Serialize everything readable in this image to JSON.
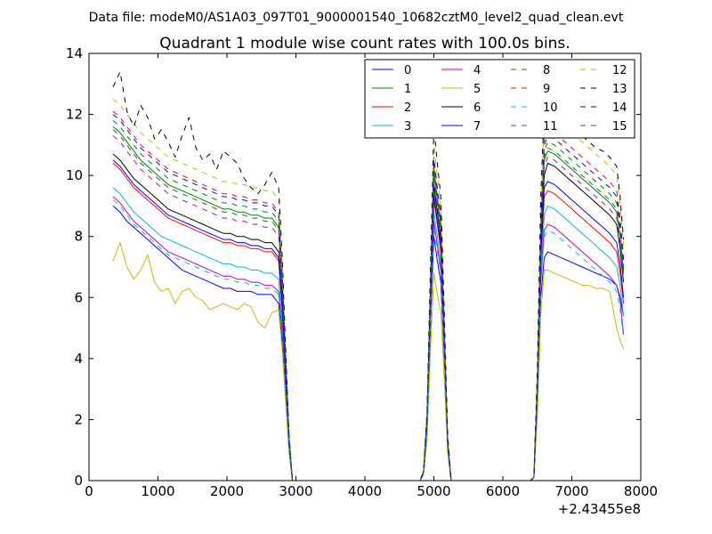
{
  "figure": {
    "suptitle": "Data file: modeM0/AS1A03_097T01_9000001540_10682cztM0_level2_quad_clean.evt"
  },
  "colors": {
    "palette": [
      "#0000ff",
      "#008000",
      "#ff0000",
      "#00bfbf",
      "#bf00bf",
      "#bfbf00",
      "#000000"
    ]
  },
  "chart_data": {
    "type": "line",
    "title": "Quadrant 1 module wise count rates with 100.0s bins.",
    "xlabel": "",
    "ylabel": "",
    "xlim": [
      0,
      8000
    ],
    "ylim": [
      0,
      14
    ],
    "x_offset_label": "+2.43455e8",
    "xticks": [
      0,
      1000,
      2000,
      3000,
      4000,
      5000,
      6000,
      7000,
      8000
    ],
    "xtick_labels": [
      "0",
      "1000",
      "2000",
      "3000",
      "4000",
      "5000",
      "6000",
      "7000",
      "8000"
    ],
    "yticks": [
      0,
      2,
      4,
      6,
      8,
      10,
      12,
      14
    ],
    "ytick_labels": [
      "0",
      "2",
      "4",
      "6",
      "8",
      "10",
      "12",
      "14"
    ],
    "grid": false,
    "legend": {
      "position": "top-right",
      "columns": 4
    },
    "x": [
      350,
      450,
      550,
      650,
      750,
      850,
      950,
      1050,
      1150,
      1250,
      1350,
      1450,
      1550,
      1650,
      1750,
      1850,
      1950,
      2050,
      2150,
      2250,
      2350,
      2450,
      2550,
      2650,
      2750,
      2800,
      2850,
      2900,
      2950,
      3050,
      3250,
      3500,
      4000,
      4500,
      4800,
      4850,
      4900,
      4950,
      5000,
      5050,
      5100,
      5150,
      5200,
      5250,
      5300,
      5500,
      6000,
      6400,
      6450,
      6500,
      6550,
      6600,
      6650,
      6750,
      6850,
      6950,
      7050,
      7150,
      7250,
      7350,
      7450,
      7550,
      7650,
      7700,
      7750
    ],
    "series": [
      {
        "name": "0",
        "style": "solid",
        "color": "#0000ff",
        "values": [
          9.0,
          8.8,
          8.5,
          8.3,
          8.1,
          7.9,
          7.7,
          7.5,
          7.3,
          7.1,
          6.9,
          6.8,
          6.7,
          6.6,
          6.5,
          6.4,
          6.3,
          6.3,
          6.2,
          6.2,
          6.2,
          6.1,
          6.1,
          6.1,
          5.8,
          4.5,
          2.8,
          1.0,
          0,
          0,
          0,
          0,
          0,
          0,
          0,
          0.2,
          1.5,
          5.0,
          8.0,
          7.2,
          6.5,
          4.0,
          1.0,
          0,
          0,
          0,
          0,
          0,
          0.1,
          2.5,
          6.0,
          7.3,
          7.5,
          7.4,
          7.3,
          7.2,
          7.1,
          7.0,
          6.9,
          6.8,
          6.7,
          6.6,
          6.4,
          6.0,
          5.4
        ]
      },
      {
        "name": "1",
        "style": "solid",
        "color": "#008000",
        "values": [
          11.6,
          11.4,
          11.1,
          10.8,
          10.5,
          10.3,
          10.1,
          9.9,
          9.7,
          9.6,
          9.5,
          9.4,
          9.3,
          9.2,
          9.1,
          9.0,
          8.9,
          8.9,
          8.8,
          8.8,
          8.7,
          8.7,
          8.6,
          8.6,
          8.3,
          6.5,
          3.8,
          1.3,
          0,
          0,
          0,
          0,
          0,
          0,
          0,
          0.3,
          2.0,
          6.0,
          10.2,
          9.2,
          8.3,
          5.0,
          1.3,
          0,
          0,
          0,
          0,
          0,
          0.1,
          3.2,
          8.0,
          10.5,
          10.8,
          10.7,
          10.5,
          10.3,
          10.1,
          9.9,
          9.7,
          9.5,
          9.3,
          9.1,
          8.8,
          8.0,
          6.8
        ]
      },
      {
        "name": "2",
        "style": "solid",
        "color": "#ff0000",
        "values": [
          10.4,
          10.2,
          9.9,
          9.6,
          9.4,
          9.2,
          9.0,
          8.8,
          8.6,
          8.5,
          8.4,
          8.3,
          8.2,
          8.1,
          8.0,
          7.9,
          7.8,
          7.8,
          7.7,
          7.7,
          7.6,
          7.6,
          7.5,
          7.5,
          7.2,
          5.6,
          3.4,
          1.2,
          0,
          0,
          0,
          0,
          0,
          0,
          0,
          0.3,
          1.8,
          5.5,
          9.2,
          8.4,
          7.5,
          4.5,
          1.2,
          0,
          0,
          0,
          0,
          0,
          0.1,
          2.9,
          7.2,
          9.3,
          9.5,
          9.4,
          9.2,
          9.0,
          8.8,
          8.6,
          8.4,
          8.2,
          8.0,
          7.8,
          7.5,
          6.8,
          5.8
        ]
      },
      {
        "name": "3",
        "style": "solid",
        "color": "#00bfbf",
        "values": [
          9.6,
          9.4,
          9.1,
          8.8,
          8.6,
          8.4,
          8.2,
          8.0,
          7.9,
          7.8,
          7.7,
          7.6,
          7.5,
          7.4,
          7.3,
          7.2,
          7.1,
          7.1,
          7.0,
          7.0,
          6.9,
          6.9,
          6.8,
          6.8,
          6.6,
          5.2,
          3.1,
          1.1,
          0,
          0,
          0,
          0,
          0,
          0,
          0,
          0.2,
          1.7,
          5.2,
          8.8,
          8.0,
          7.1,
          4.3,
          1.1,
          0,
          0,
          0,
          0,
          0,
          0.1,
          2.7,
          6.8,
          8.7,
          9.0,
          8.9,
          8.7,
          8.5,
          8.3,
          8.1,
          7.9,
          7.7,
          7.5,
          7.3,
          7.0,
          6.4,
          5.4
        ]
      },
      {
        "name": "4",
        "style": "solid",
        "color": "#bf00bf",
        "values": [
          9.3,
          9.1,
          8.8,
          8.5,
          8.3,
          8.1,
          7.9,
          7.7,
          7.5,
          7.4,
          7.3,
          7.2,
          7.1,
          7.0,
          6.9,
          6.8,
          6.7,
          6.7,
          6.6,
          6.6,
          6.5,
          6.5,
          6.4,
          6.4,
          6.2,
          4.9,
          3.0,
          1.0,
          0,
          0,
          0,
          0,
          0,
          0,
          0,
          0.2,
          1.6,
          5.0,
          8.5,
          7.7,
          6.9,
          4.1,
          1.0,
          0,
          0,
          0,
          0,
          0,
          0.1,
          2.6,
          6.5,
          8.2,
          8.4,
          8.3,
          8.1,
          7.9,
          7.7,
          7.5,
          7.3,
          7.1,
          6.9,
          6.7,
          6.4,
          5.9,
          4.8
        ]
      },
      {
        "name": "5",
        "style": "solid",
        "color": "#bfbf00",
        "values": [
          7.2,
          7.8,
          7.0,
          6.6,
          6.9,
          7.4,
          6.5,
          6.2,
          6.3,
          5.8,
          6.2,
          6.3,
          6.0,
          5.9,
          5.6,
          5.7,
          5.8,
          5.7,
          5.6,
          5.8,
          5.7,
          5.2,
          5.0,
          5.5,
          5.6,
          4.3,
          2.6,
          0.9,
          0,
          0,
          0,
          0,
          0,
          0,
          0,
          0.2,
          1.3,
          4.2,
          6.8,
          6.1,
          5.5,
          3.4,
          0.9,
          0,
          0,
          0,
          0,
          0,
          0.1,
          2.1,
          5.4,
          6.9,
          6.9,
          6.8,
          6.7,
          6.6,
          6.5,
          6.4,
          6.4,
          6.3,
          6.3,
          6.2,
          5.0,
          4.6,
          4.3
        ]
      },
      {
        "name": "6",
        "style": "solid",
        "color": "#000000",
        "values": [
          10.7,
          10.5,
          10.2,
          9.9,
          9.7,
          9.5,
          9.3,
          9.1,
          8.9,
          8.8,
          8.7,
          8.6,
          8.5,
          8.4,
          8.3,
          8.2,
          8.1,
          8.1,
          8.0,
          8.0,
          7.9,
          7.9,
          7.8,
          7.8,
          7.5,
          5.9,
          3.5,
          1.2,
          0,
          0,
          0,
          0,
          0,
          0,
          0,
          0.3,
          1.9,
          5.7,
          9.7,
          8.8,
          7.9,
          4.8,
          1.2,
          0,
          0,
          0,
          0,
          0,
          0.1,
          3.0,
          7.6,
          10.0,
          10.4,
          10.3,
          10.1,
          9.9,
          9.7,
          9.5,
          9.3,
          9.1,
          8.9,
          8.7,
          8.4,
          7.6,
          6.5
        ]
      },
      {
        "name": "7",
        "style": "solid",
        "color": "#0000ff",
        "values": [
          10.5,
          10.3,
          10.0,
          9.7,
          9.5,
          9.3,
          9.1,
          8.9,
          8.7,
          8.6,
          8.5,
          8.4,
          8.3,
          8.2,
          8.1,
          8.0,
          7.9,
          7.9,
          7.8,
          7.8,
          7.7,
          7.7,
          7.6,
          7.6,
          7.3,
          5.7,
          3.4,
          1.2,
          0,
          0,
          0,
          0,
          0,
          0,
          0,
          0.3,
          1.8,
          5.6,
          9.4,
          8.5,
          7.7,
          4.6,
          1.2,
          0,
          0,
          0,
          0,
          0,
          0.1,
          2.9,
          7.4,
          9.6,
          9.8,
          9.7,
          9.5,
          9.3,
          9.1,
          8.9,
          8.7,
          8.5,
          8.3,
          8.1,
          7.8,
          7.1,
          6.0
        ]
      },
      {
        "name": "8",
        "style": "dashed",
        "color": "#008000",
        "values": [
          11.8,
          11.6,
          11.3,
          11.0,
          10.7,
          10.5,
          10.3,
          10.1,
          9.9,
          9.8,
          9.7,
          9.6,
          9.5,
          9.4,
          9.3,
          9.2,
          9.1,
          9.1,
          9.0,
          9.0,
          8.9,
          8.9,
          8.8,
          8.8,
          8.5,
          6.6,
          3.9,
          1.3,
          0,
          0,
          0,
          0,
          0,
          0,
          0,
          0.3,
          2.0,
          6.1,
          10.3,
          9.3,
          8.4,
          5.1,
          1.3,
          0,
          0,
          0,
          0,
          0,
          0.1,
          3.3,
          8.2,
          10.8,
          11.1,
          11.0,
          10.8,
          10.6,
          10.4,
          10.2,
          10.0,
          9.8,
          9.6,
          9.4,
          9.1,
          8.2,
          7.0
        ]
      },
      {
        "name": "9",
        "style": "dashed",
        "color": "#ff0000",
        "values": [
          12.1,
          11.9,
          11.6,
          11.3,
          11.0,
          10.8,
          10.6,
          10.4,
          10.2,
          10.1,
          10.0,
          9.9,
          9.8,
          9.7,
          9.6,
          9.5,
          9.4,
          9.4,
          9.3,
          9.3,
          9.2,
          9.2,
          9.1,
          9.1,
          8.8,
          6.8,
          4.0,
          1.4,
          0,
          0,
          0,
          0,
          0,
          0,
          0,
          0.3,
          2.1,
          6.3,
          10.6,
          9.6,
          8.7,
          5.2,
          1.4,
          0,
          0,
          0,
          0,
          0,
          0.1,
          3.4,
          8.5,
          11.2,
          11.5,
          11.4,
          11.2,
          11.0,
          10.8,
          10.6,
          10.4,
          10.2,
          10.0,
          9.8,
          9.5,
          8.6,
          7.3
        ]
      },
      {
        "name": "10",
        "style": "dashed",
        "color": "#00bfbf",
        "values": [
          9.2,
          9.0,
          8.7,
          8.4,
          8.2,
          8.0,
          7.8,
          7.6,
          7.4,
          7.3,
          7.2,
          7.1,
          7.0,
          6.9,
          6.8,
          6.7,
          6.6,
          6.6,
          6.5,
          6.5,
          6.4,
          6.4,
          6.3,
          6.3,
          6.1,
          4.8,
          2.9,
          1.0,
          0,
          0,
          0,
          0,
          0,
          0,
          0,
          0.2,
          1.6,
          4.9,
          8.3,
          7.5,
          6.8,
          4.1,
          1.0,
          0,
          0,
          0,
          0,
          0,
          0.1,
          2.6,
          6.4,
          8.0,
          8.2,
          8.1,
          7.9,
          7.7,
          7.5,
          7.3,
          7.1,
          6.9,
          6.7,
          6.5,
          6.2,
          5.6,
          4.7
        ]
      },
      {
        "name": "11",
        "style": "dashed",
        "color": "#bf00bf",
        "values": [
          11.3,
          11.1,
          10.8,
          10.5,
          10.2,
          10.0,
          9.8,
          9.6,
          9.4,
          9.3,
          9.2,
          9.1,
          9.0,
          8.9,
          8.8,
          8.7,
          8.6,
          8.6,
          8.5,
          8.5,
          8.4,
          8.4,
          8.3,
          8.3,
          8.0,
          6.3,
          3.7,
          1.3,
          0,
          0,
          0,
          0,
          0,
          0,
          0,
          0.3,
          1.9,
          5.9,
          9.9,
          9.0,
          8.1,
          4.9,
          1.3,
          0,
          0,
          0,
          0,
          0,
          0.1,
          3.1,
          7.9,
          10.3,
          10.6,
          10.5,
          10.3,
          10.1,
          9.9,
          9.7,
          9.5,
          9.3,
          9.1,
          8.9,
          8.6,
          7.8,
          6.6
        ]
      },
      {
        "name": "12",
        "style": "dashed",
        "color": "#bfbf00",
        "values": [
          12.5,
          12.3,
          12.0,
          11.7,
          11.4,
          11.2,
          11.0,
          10.8,
          10.6,
          10.5,
          10.4,
          10.3,
          10.2,
          10.1,
          10.0,
          9.9,
          9.8,
          9.8,
          9.7,
          9.7,
          9.6,
          9.6,
          9.5,
          9.5,
          9.2,
          7.1,
          4.2,
          1.4,
          0,
          0,
          0,
          0,
          0,
          0,
          0,
          0.3,
          2.2,
          6.6,
          11.0,
          10.0,
          9.0,
          5.4,
          1.4,
          0,
          0,
          0,
          0,
          0,
          0.1,
          3.6,
          8.9,
          11.7,
          12.0,
          11.9,
          11.7,
          11.5,
          11.3,
          11.1,
          10.9,
          10.7,
          10.5,
          10.3,
          10.0,
          9.0,
          7.7
        ]
      },
      {
        "name": "13",
        "style": "dashed",
        "color": "#000000",
        "values": [
          12.9,
          13.4,
          12.1,
          11.6,
          12.3,
          11.9,
          11.2,
          11.5,
          11.1,
          10.6,
          11.3,
          11.9,
          10.9,
          10.5,
          10.7,
          10.2,
          10.8,
          10.6,
          10.4,
          9.9,
          9.6,
          9.4,
          9.7,
          10.1,
          9.6,
          7.4,
          4.4,
          1.5,
          0,
          0,
          0,
          0,
          0,
          0,
          0,
          0.3,
          2.3,
          6.9,
          11.6,
          10.4,
          9.3,
          5.6,
          1.5,
          0,
          0,
          0,
          0,
          0,
          0.1,
          3.7,
          9.3,
          12.2,
          12.4,
          12.1,
          11.8,
          11.6,
          11.7,
          11.3,
          11.1,
          10.9,
          10.8,
          10.6,
          10.3,
          9.3,
          7.9
        ]
      },
      {
        "name": "14",
        "style": "dashed",
        "color": "#0000ff",
        "values": [
          12.0,
          11.8,
          11.5,
          11.2,
          10.9,
          10.7,
          10.5,
          10.3,
          10.1,
          10.0,
          9.9,
          9.8,
          9.7,
          9.6,
          9.5,
          9.4,
          9.3,
          9.3,
          9.2,
          9.2,
          9.1,
          9.1,
          9.0,
          9.0,
          8.7,
          6.7,
          4.0,
          1.4,
          0,
          0,
          0,
          0,
          0,
          0,
          0,
          0.3,
          2.1,
          6.2,
          10.5,
          9.5,
          8.6,
          5.2,
          1.4,
          0,
          0,
          0,
          0,
          0,
          0.1,
          3.4,
          8.4,
          11.0,
          11.3,
          11.2,
          11.0,
          10.8,
          10.6,
          10.4,
          10.2,
          10.0,
          9.8,
          9.6,
          9.3,
          8.4,
          7.2
        ]
      },
      {
        "name": "15",
        "style": "dashed",
        "color": "#008000",
        "values": [
          11.5,
          11.3,
          11.0,
          10.7,
          10.4,
          10.2,
          10.0,
          9.8,
          9.6,
          9.5,
          9.4,
          9.3,
          9.2,
          9.1,
          9.0,
          8.9,
          8.8,
          8.8,
          8.7,
          8.7,
          8.6,
          8.6,
          8.5,
          8.5,
          8.2,
          6.4,
          3.8,
          1.3,
          0,
          0,
          0,
          0,
          0,
          0,
          0,
          0.3,
          2.0,
          6.0,
          10.1,
          9.1,
          8.2,
          5.0,
          1.3,
          0,
          0,
          0,
          0,
          0,
          0.1,
          3.2,
          8.1,
          10.6,
          10.9,
          10.8,
          10.6,
          10.4,
          10.2,
          10.0,
          9.8,
          9.6,
          9.4,
          9.2,
          8.9,
          8.1,
          6.9
        ]
      }
    ]
  }
}
